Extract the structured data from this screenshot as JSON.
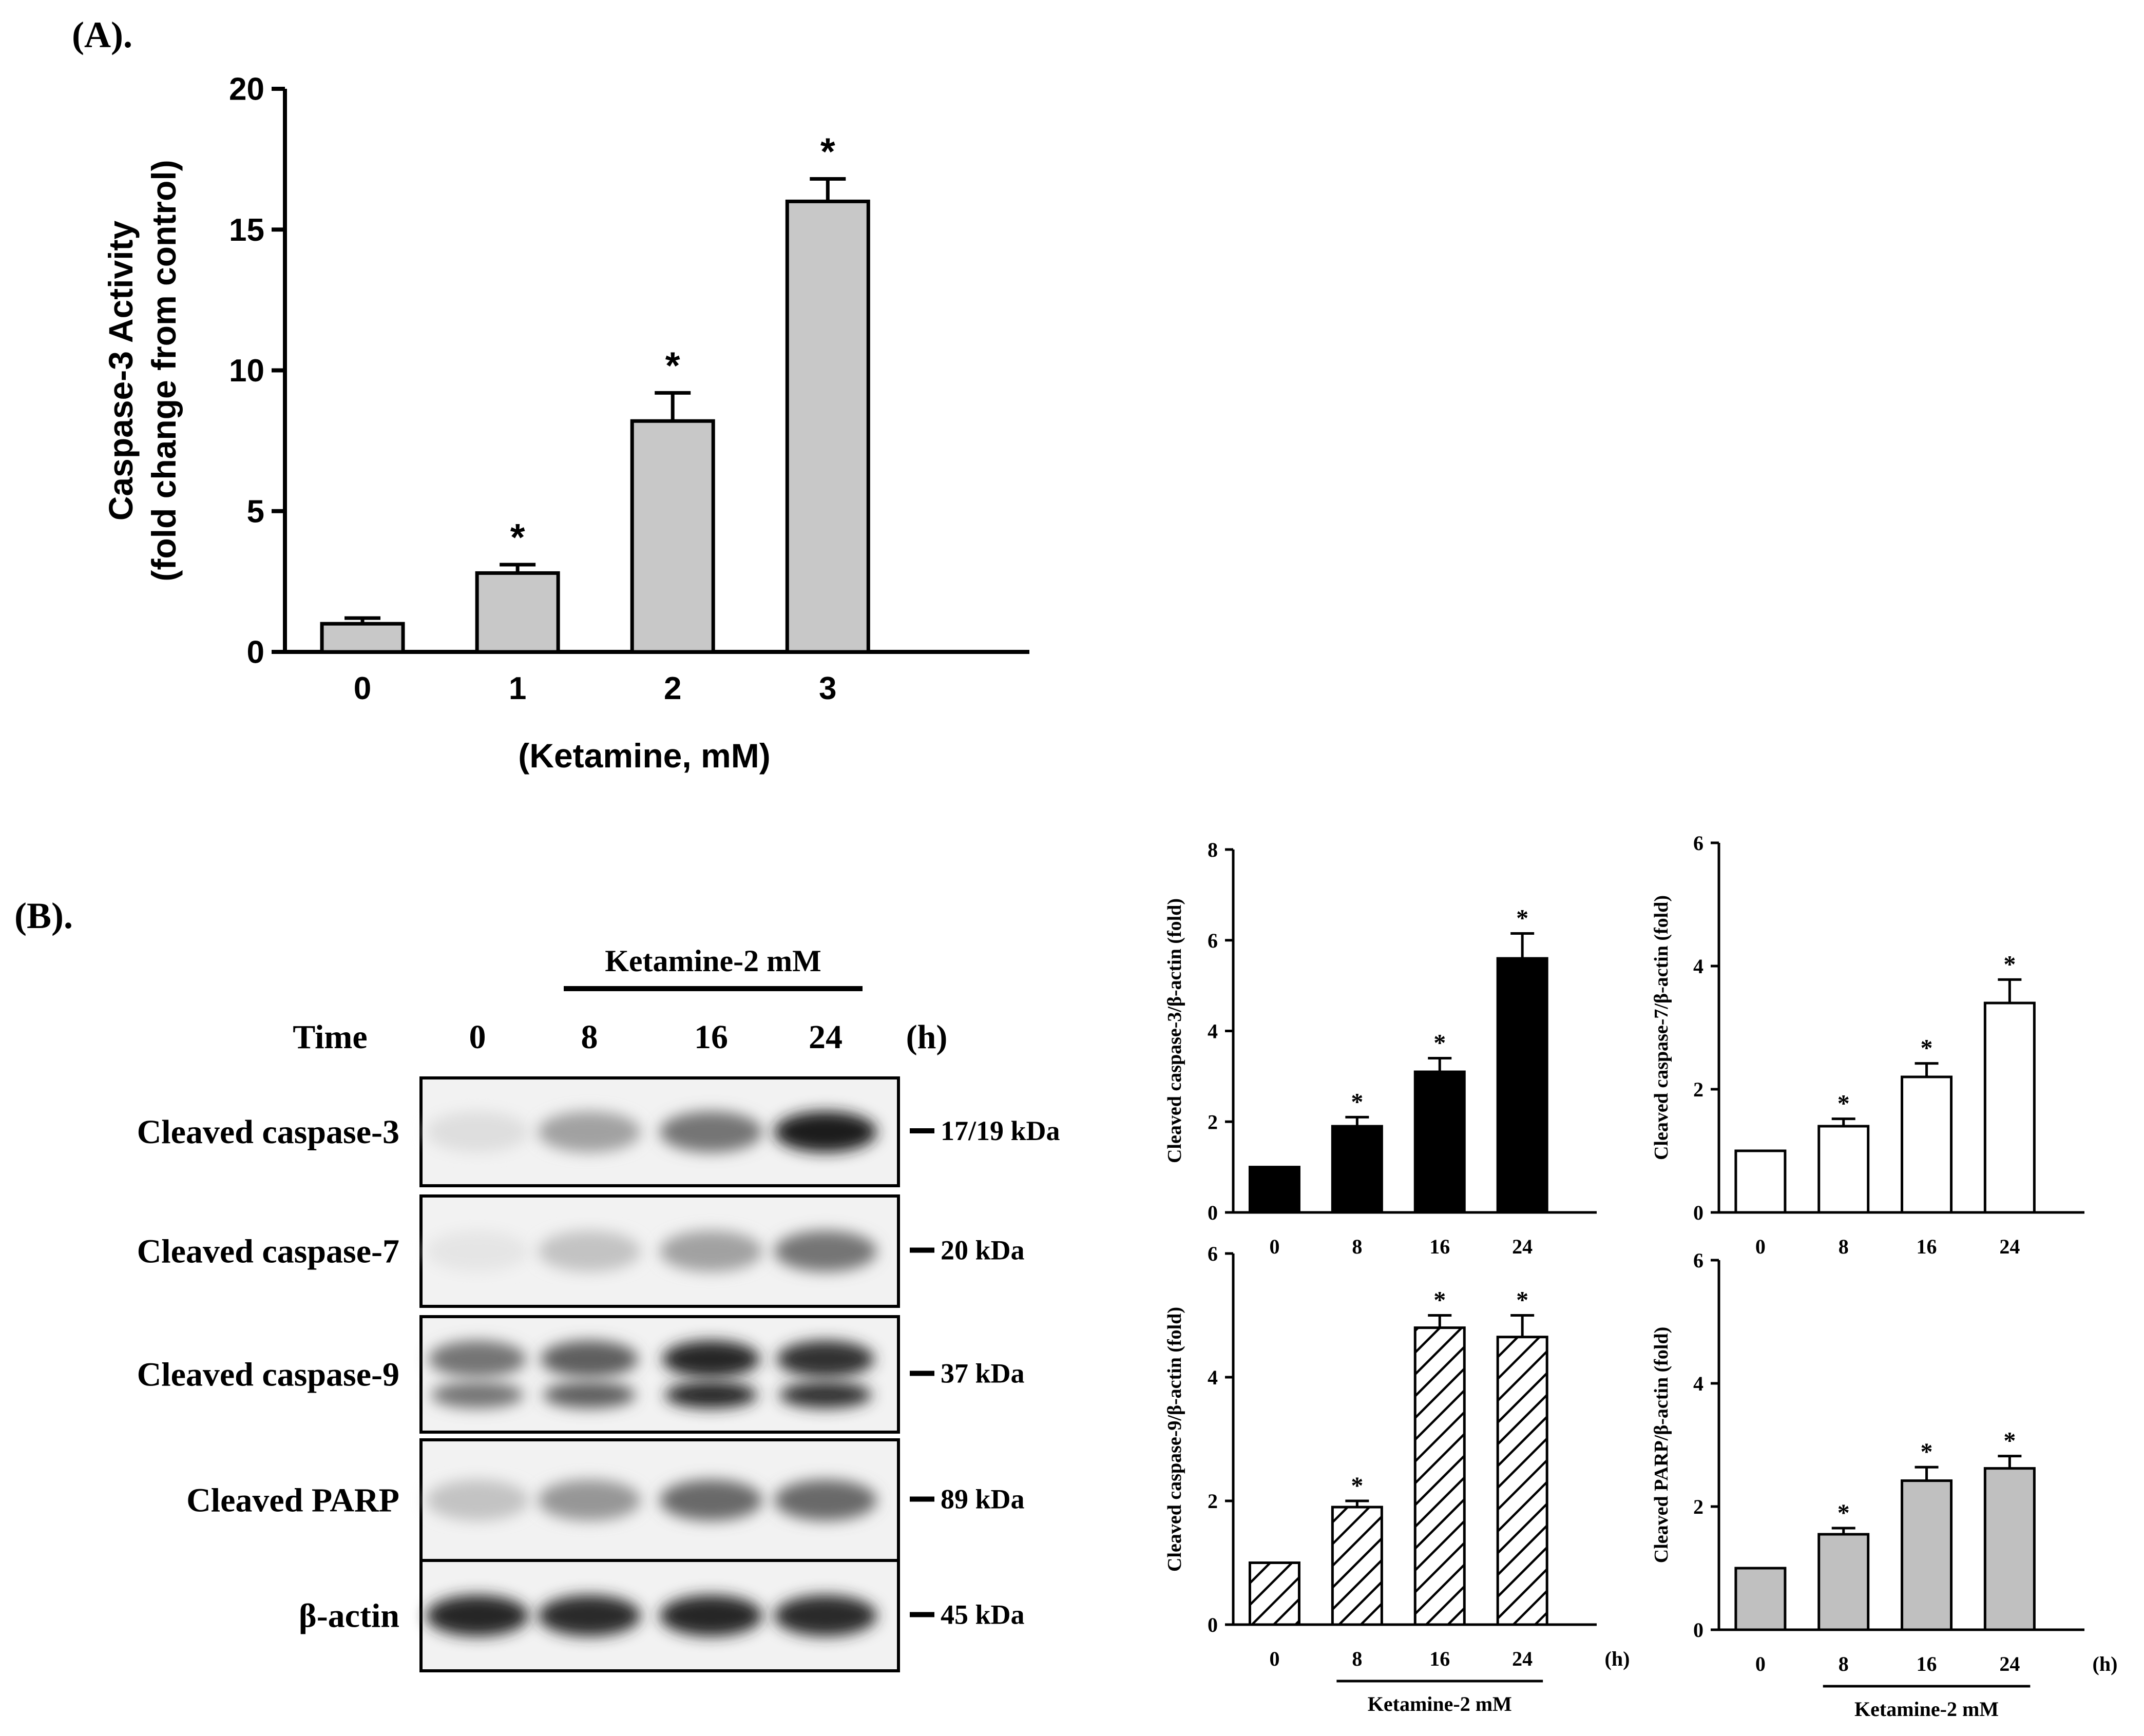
{
  "panel_a": {
    "letter": "(A)."
  },
  "panel_b": {
    "letter": "(B).",
    "blot": {
      "treatment_label": "Ketamine-2 mM",
      "time_label": "Time",
      "time_unit": "(h)",
      "lanes": [
        "0",
        "8",
        "16",
        "24"
      ],
      "rows": [
        {
          "label": "Cleaved caspase-3",
          "marker": "17/19 kDa",
          "intensities": [
            0.08,
            0.35,
            0.55,
            0.95
          ],
          "double": false
        },
        {
          "label": "Cleaved caspase-7",
          "marker": "20 kDa",
          "intensities": [
            0.05,
            0.2,
            0.35,
            0.55
          ],
          "double": false
        },
        {
          "label": "Cleaved caspase-9",
          "marker": "37 kDa",
          "intensities": [
            0.55,
            0.65,
            0.9,
            0.85
          ],
          "double": true
        },
        {
          "label": "Cleaved PARP",
          "marker": "89 kDa",
          "intensities": [
            0.2,
            0.4,
            0.6,
            0.6
          ],
          "double": false
        },
        {
          "label": "β-actin",
          "marker": "45 kDa",
          "intensities": [
            0.9,
            0.88,
            0.9,
            0.88
          ],
          "double": false
        }
      ]
    }
  },
  "chart_data": [
    {
      "type": "bar",
      "panel": "A",
      "categories": [
        "0",
        "1",
        "2",
        "3"
      ],
      "values": [
        1.0,
        2.8,
        8.2,
        16.0
      ],
      "errors": [
        0.2,
        0.3,
        1.0,
        0.8
      ],
      "significance": [
        "",
        "*",
        "*",
        "*"
      ],
      "xlabel": "(Ketamine, mM)",
      "ylabel_lines": [
        "Caspase-3 Activity",
        "(fold change from control)"
      ],
      "ylim": [
        0,
        20
      ],
      "yticks": [
        0,
        5,
        10,
        15,
        20
      ],
      "bar_color": "#c8c8c8",
      "fill": "solid"
    },
    {
      "type": "bar",
      "panel": "B-caspase-3",
      "categories": [
        "0",
        "8",
        "16",
        "24"
      ],
      "values": [
        1.0,
        1.9,
        3.1,
        5.6
      ],
      "errors": [
        0,
        0.2,
        0.3,
        0.55
      ],
      "significance": [
        "",
        "*",
        "*",
        "*"
      ],
      "ylabel": "Cleaved caspase-3/β-actin (fold)",
      "ylim": [
        0,
        8
      ],
      "yticks": [
        0,
        2,
        4,
        6,
        8
      ],
      "bar_color": "#000000",
      "fill": "solid"
    },
    {
      "type": "bar",
      "panel": "B-caspase-7",
      "categories": [
        "0",
        "8",
        "16",
        "24"
      ],
      "values": [
        1.0,
        1.4,
        2.2,
        3.4
      ],
      "errors": [
        0,
        0.12,
        0.22,
        0.38
      ],
      "significance": [
        "",
        "*",
        "*",
        "*"
      ],
      "ylabel": "Cleaved caspase-7/β-actin (fold)",
      "ylim": [
        0,
        6
      ],
      "yticks": [
        0,
        2,
        4,
        6
      ],
      "bar_color": "#ffffff",
      "fill": "solid"
    },
    {
      "type": "bar",
      "panel": "B-caspase-9",
      "categories": [
        "0",
        "8",
        "16",
        "24"
      ],
      "values": [
        1.0,
        1.9,
        4.8,
        4.65
      ],
      "errors": [
        0,
        0.1,
        0.2,
        0.35
      ],
      "significance": [
        "",
        "*",
        "*",
        "*"
      ],
      "ylabel": "Cleaved caspase-9/β-actin (fold)",
      "ylim": [
        0,
        6
      ],
      "yticks": [
        0,
        2,
        4,
        6
      ],
      "xlabel_unit": "(h)",
      "treatment_label": "Ketamine-2 mM",
      "bar_color": "#ffffff",
      "fill": "hatch"
    },
    {
      "type": "bar",
      "panel": "B-PARP",
      "categories": [
        "0",
        "8",
        "16",
        "24"
      ],
      "values": [
        1.0,
        1.55,
        2.42,
        2.62
      ],
      "errors": [
        0,
        0.1,
        0.22,
        0.2
      ],
      "significance": [
        "",
        "*",
        "*",
        "*"
      ],
      "ylabel": "Cleaved PARP/β-actin (fold)",
      "ylim": [
        0,
        6
      ],
      "yticks": [
        0,
        2,
        4,
        6
      ],
      "xlabel_unit": "(h)",
      "treatment_label": "Ketamine-2 mM",
      "bar_color": "#c0c0c0",
      "fill": "solid"
    }
  ]
}
